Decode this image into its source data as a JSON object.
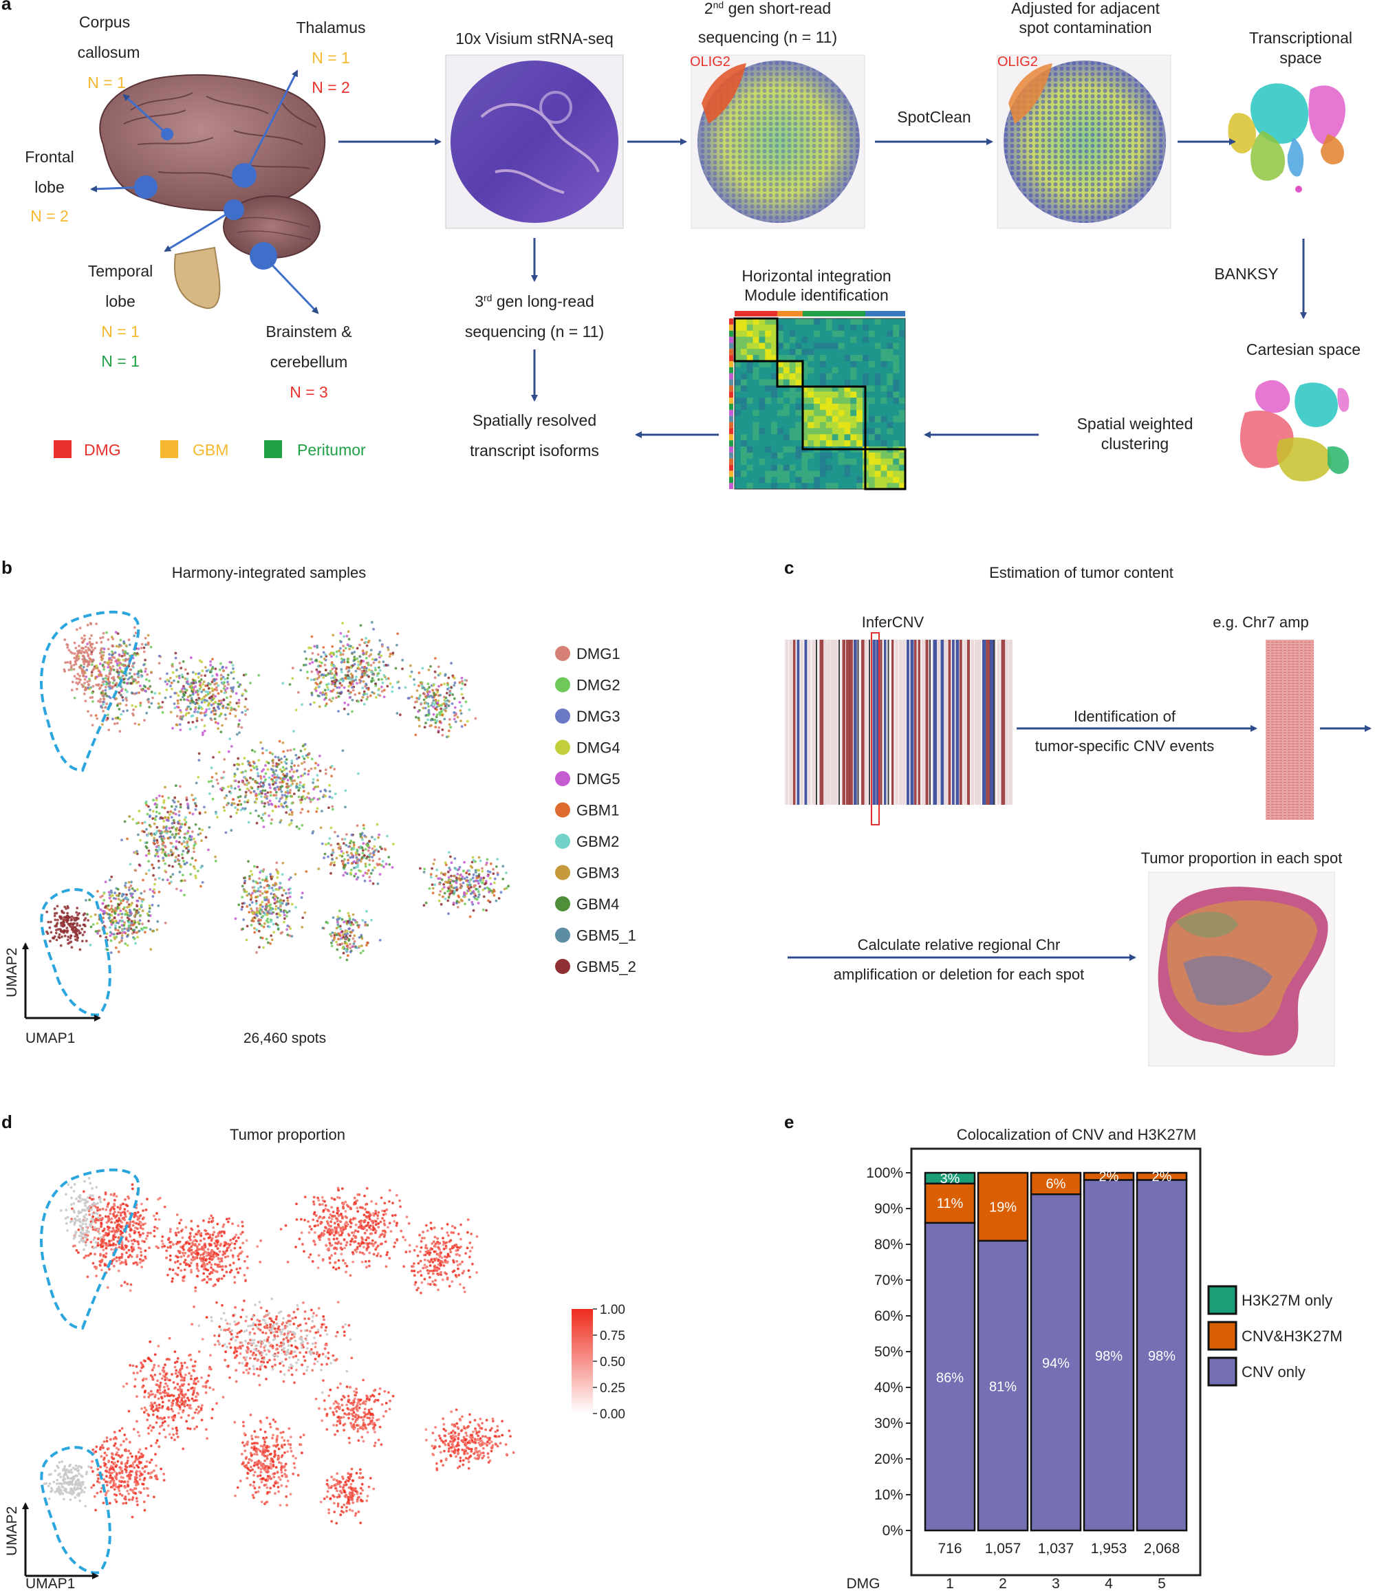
{
  "panels": {
    "a": {
      "letter": "a",
      "regions": [
        {
          "name": "Corpus callosum",
          "l1": "Corpus",
          "l2": "callosum",
          "counts": [
            {
              "text": "N = 1",
              "group": "GBM"
            }
          ]
        },
        {
          "name": "Thalamus",
          "l1": "Thalamus",
          "l2": "",
          "counts": [
            {
              "text": "N = 1",
              "group": "GBM"
            },
            {
              "text": "N = 2",
              "group": "DMG"
            }
          ]
        },
        {
          "name": "Frontal lobe",
          "l1": "Frontal",
          "l2": "lobe",
          "counts": [
            {
              "text": "N = 2",
              "group": "GBM"
            }
          ]
        },
        {
          "name": "Temporal lobe",
          "l1": "Temporal",
          "l2": "lobe",
          "counts": [
            {
              "text": "N = 1",
              "group": "GBM"
            },
            {
              "text": "N = 1",
              "group": "Peritumor"
            }
          ]
        },
        {
          "name": "Brainstem & cerebellum",
          "l1": "Brainstem &",
          "l2": "cerebellum",
          "counts": [
            {
              "text": "N = 3",
              "group": "DMG"
            }
          ]
        }
      ],
      "group_legend": [
        {
          "label": "DMG",
          "color": "#e8312a"
        },
        {
          "label": "GBM",
          "color": "#f5b82e"
        },
        {
          "label": "Peritumor",
          "color": "#22a045"
        }
      ],
      "steps": {
        "visium": "10x Visium stRNA-seq",
        "short_read_1a": "2",
        "short_read_1b": "nd",
        "short_read_1c": " gen short-read",
        "short_read_2": "sequencing (n = 11)",
        "adjusted_1": "Adjusted for adjacent",
        "adjusted_2": "spot contamination",
        "spotclean": "SpotClean",
        "transcriptional_1": "Transcriptional",
        "transcriptional_2": "space",
        "banksy": "BANKSY",
        "cartesian": "Cartesian space",
        "spatial_1": "Spatial weighted",
        "spatial_2": "clustering",
        "horizontal_1": "Horizontal integration",
        "horizontal_2": "Module identification",
        "long_read_1a": "3",
        "long_read_1b": "rd",
        "long_read_1c": " gen long-read",
        "long_read_2": "sequencing (n = 11)",
        "isoforms_1": "Spatially resolved",
        "isoforms_2": "transcript isoforms",
        "gene_label": "OLIG2"
      }
    },
    "b": {
      "letter": "b",
      "title": "Harmony-integrated samples",
      "xlabel": "UMAP1",
      "ylabel": "UMAP2",
      "spots": "26,460 spots",
      "legend": [
        {
          "label": "DMG1",
          "color": "#d67f74"
        },
        {
          "label": "DMG2",
          "color": "#6ec95a"
        },
        {
          "label": "DMG3",
          "color": "#6a79c6"
        },
        {
          "label": "DMG4",
          "color": "#c2cf3b"
        },
        {
          "label": "DMG5",
          "color": "#c45bd1"
        },
        {
          "label": "GBM1",
          "color": "#dd6a2e"
        },
        {
          "label": "GBM2",
          "color": "#72d2c8"
        },
        {
          "label": "GBM3",
          "color": "#c69a3a"
        },
        {
          "label": "GBM4",
          "color": "#4f8f3a"
        },
        {
          "label": "GBM5_1",
          "color": "#5b8ea3"
        },
        {
          "label": "GBM5_2",
          "color": "#8e2f33"
        }
      ]
    },
    "c": {
      "letter": "c",
      "title": "Estimation of tumor content",
      "infercnv": "InferCNV",
      "chr7": "e.g. Chr7 amp",
      "identification_1": "Identification of",
      "identification_2": "tumor-specific CNV events",
      "proportion_title": "Tumor proportion in each spot",
      "calculate_1": "Calculate relative regional Chr",
      "calculate_2": "amplification or deletion for each spot"
    },
    "d": {
      "letter": "d",
      "title": "Tumor proportion",
      "xlabel": "UMAP1",
      "ylabel": "UMAP2",
      "colorbar": {
        "ticks": [
          "1.00",
          "0.75",
          "0.50",
          "0.25",
          "0.00"
        ],
        "low": "#ffffff",
        "high": "#ee2b1d"
      }
    },
    "e": {
      "letter": "e"
    }
  },
  "chart_data": {
    "type": "bar",
    "stacked": true,
    "title": "Colocalization of CNV and H3K27M",
    "xlabel": "DMG",
    "categories": [
      "1",
      "2",
      "3",
      "4",
      "5"
    ],
    "counts": [
      "716",
      "1,057",
      "1,037",
      "1,953",
      "2,068"
    ],
    "yticks": [
      "0%",
      "10%",
      "20%",
      "30%",
      "40%",
      "50%",
      "60%",
      "70%",
      "80%",
      "90%",
      "100%"
    ],
    "ylim": [
      0,
      100
    ],
    "series": [
      {
        "name": "CNV only",
        "color": "#7570b3",
        "values": [
          86,
          81,
          94,
          98,
          98
        ],
        "labels": [
          "86%",
          "81%",
          "94%",
          "98%",
          "98%"
        ]
      },
      {
        "name": "CNV&H3K27M",
        "color": "#d95f02",
        "values": [
          11,
          19,
          6,
          2,
          2
        ],
        "labels": [
          "11%",
          "19%",
          "6%",
          "2%",
          "2%"
        ]
      },
      {
        "name": "H3K27M only",
        "color": "#1b9e77",
        "values": [
          3,
          0,
          0,
          0,
          0
        ],
        "labels": [
          "3%",
          "",
          "",
          "",
          ""
        ]
      }
    ],
    "legend_order": [
      "H3K27M only",
      "CNV&H3K27M",
      "CNV only"
    ],
    "legend_placement": "right"
  }
}
